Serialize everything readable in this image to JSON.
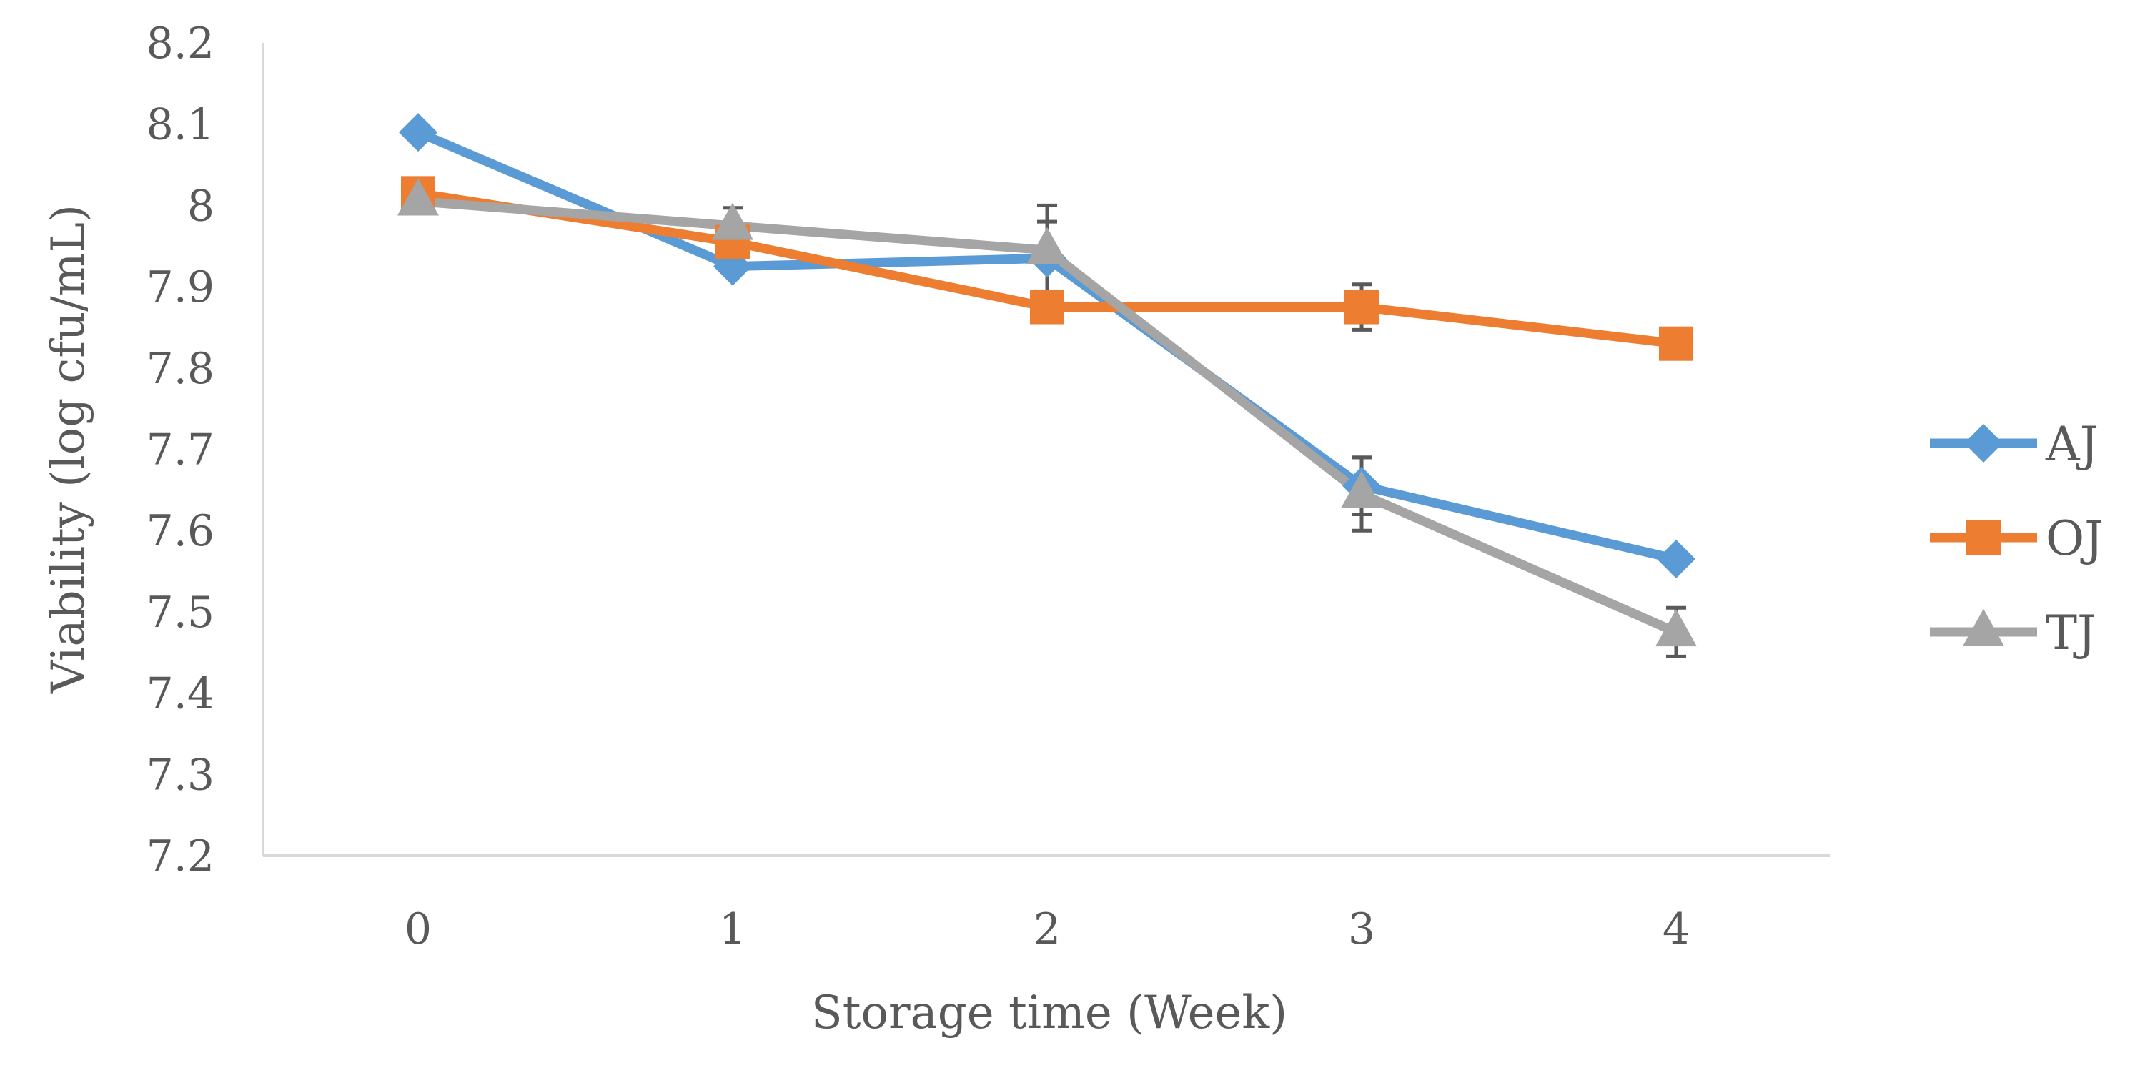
{
  "chart_data": {
    "type": "line",
    "title": "",
    "xlabel": "Storage time (Week)",
    "ylabel": "Viability (log cfu/mL)",
    "categories": [
      "0",
      "1",
      "2",
      "3",
      "4"
    ],
    "x": [
      0,
      1,
      2,
      3,
      4
    ],
    "ylim": [
      7.2,
      8.2
    ],
    "yticks": [
      "7.2",
      "7.3",
      "7.4",
      "7.5",
      "7.6",
      "7.7",
      "7.8",
      "7.9",
      "8",
      "8.1",
      "8.2"
    ],
    "grid": false,
    "legend_position": "right",
    "series": [
      {
        "name": "AJ",
        "marker": "diamond",
        "color": "#5B9BD5",
        "values": [
          8.09,
          7.925,
          7.935,
          7.655,
          7.565
        ],
        "errors": [
          0.003,
          0.008,
          0.045,
          0.035,
          0.005
        ]
      },
      {
        "name": "OJ",
        "marker": "square",
        "color": "#ED7D31",
        "values": [
          8.015,
          7.955,
          7.875,
          7.875,
          7.83
        ],
        "errors": [
          0.005,
          0.005,
          0.005,
          0.028,
          0.005
        ]
      },
      {
        "name": "TJ",
        "marker": "triangle",
        "color": "#A5A5A5",
        "values": [
          8.005,
          7.975,
          7.945,
          7.645,
          7.475
        ],
        "errors": [
          0.005,
          0.022,
          0.055,
          0.045,
          0.03
        ]
      }
    ],
    "error_bar_color": "#595959",
    "axis_color": "#D9D9D9"
  }
}
